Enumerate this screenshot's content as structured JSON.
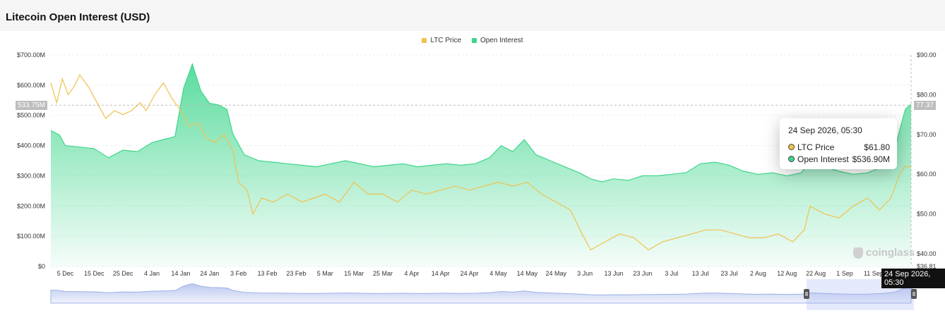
{
  "page_title": "Litecoin Open Interest (USD)",
  "legend": {
    "price_label": "LTC Price",
    "oi_label": "Open Interest"
  },
  "colors": {
    "price": "#f0c24d",
    "open_interest": "#3dd68c",
    "navigator": "#9eb0e8"
  },
  "crosshair": {
    "left_value": "533.75M",
    "right_value": "77.37",
    "oi_value_millions": 533.75,
    "price_value": 77.37
  },
  "tooltip": {
    "date": "24 Sep 2026, 05:30",
    "price_label": "LTC Price",
    "price_value": "$61.80",
    "oi_label": "Open Interest",
    "oi_value": "$536.90M"
  },
  "x_badge": "24 Sep 2026, 05:30",
  "watermark": "coinglass",
  "chart_data": {
    "type": "area",
    "left_axis": {
      "label": "",
      "ticks": [
        "$0",
        "$100.00M",
        "$200.00M",
        "$300.00M",
        "$400.00M",
        "$500.00M",
        "$600.00M",
        "$700.00M"
      ],
      "range": [
        0,
        700
      ]
    },
    "right_axis": {
      "label": "",
      "ticks": [
        "$36.81",
        "$40.00",
        "$50.00",
        "$60.00",
        "$70.00",
        "$80.00",
        "$90.00"
      ],
      "range": [
        36.81,
        90
      ]
    },
    "x_ticks": [
      "5 Dec",
      "15 Dec",
      "25 Dec",
      "4 Jan",
      "14 Jan",
      "24 Jan",
      "3 Feb",
      "13 Feb",
      "23 Feb",
      "5 Mar",
      "15 Mar",
      "25 Mar",
      "4 Apr",
      "14 Apr",
      "24 Apr",
      "4 May",
      "14 May",
      "24 May",
      "3 Jun",
      "13 Jun",
      "23 Jun",
      "3 Jul",
      "13 Jul",
      "23 Jul",
      "2 Aug",
      "12 Aug",
      "22 Aug",
      "1 Sep",
      "11 Sep"
    ],
    "x_range": [
      "2025-11-30",
      "2026-09-24"
    ],
    "series": [
      {
        "name": "Open Interest",
        "unit": "USD millions",
        "axis": "left",
        "points": [
          [
            "2025-11-30",
            450
          ],
          [
            "2025-12-03",
            435
          ],
          [
            "2025-12-05",
            400
          ],
          [
            "2025-12-10",
            395
          ],
          [
            "2025-12-15",
            390
          ],
          [
            "2025-12-20",
            360
          ],
          [
            "2025-12-25",
            385
          ],
          [
            "2025-12-30",
            380
          ],
          [
            "2026-01-04",
            410
          ],
          [
            "2026-01-08",
            420
          ],
          [
            "2026-01-12",
            430
          ],
          [
            "2026-01-15",
            590
          ],
          [
            "2026-01-18",
            670
          ],
          [
            "2026-01-21",
            580
          ],
          [
            "2026-01-24",
            540
          ],
          [
            "2026-01-27",
            535
          ],
          [
            "2026-01-30",
            520
          ],
          [
            "2026-02-01",
            440
          ],
          [
            "2026-02-05",
            370
          ],
          [
            "2026-02-10",
            350
          ],
          [
            "2026-02-15",
            345
          ],
          [
            "2026-02-20",
            340
          ],
          [
            "2026-02-25",
            335
          ],
          [
            "2026-03-02",
            330
          ],
          [
            "2026-03-07",
            340
          ],
          [
            "2026-03-12",
            350
          ],
          [
            "2026-03-17",
            340
          ],
          [
            "2026-03-22",
            330
          ],
          [
            "2026-03-27",
            335
          ],
          [
            "2026-04-01",
            340
          ],
          [
            "2026-04-06",
            330
          ],
          [
            "2026-04-11",
            335
          ],
          [
            "2026-04-16",
            340
          ],
          [
            "2026-04-21",
            335
          ],
          [
            "2026-04-26",
            340
          ],
          [
            "2026-05-01",
            360
          ],
          [
            "2026-05-05",
            400
          ],
          [
            "2026-05-09",
            380
          ],
          [
            "2026-05-13",
            420
          ],
          [
            "2026-05-17",
            370
          ],
          [
            "2026-05-22",
            350
          ],
          [
            "2026-05-27",
            330
          ],
          [
            "2026-06-01",
            310
          ],
          [
            "2026-06-05",
            290
          ],
          [
            "2026-06-09",
            280
          ],
          [
            "2026-06-13",
            290
          ],
          [
            "2026-06-18",
            285
          ],
          [
            "2026-06-23",
            300
          ],
          [
            "2026-06-28",
            300
          ],
          [
            "2026-07-03",
            305
          ],
          [
            "2026-07-08",
            310
          ],
          [
            "2026-07-13",
            340
          ],
          [
            "2026-07-18",
            345
          ],
          [
            "2026-07-23",
            335
          ],
          [
            "2026-07-28",
            315
          ],
          [
            "2026-08-02",
            305
          ],
          [
            "2026-08-07",
            310
          ],
          [
            "2026-08-12",
            300
          ],
          [
            "2026-08-17",
            310
          ],
          [
            "2026-08-20",
            355
          ],
          [
            "2026-08-25",
            330
          ],
          [
            "2026-08-30",
            315
          ],
          [
            "2026-09-04",
            305
          ],
          [
            "2026-09-09",
            310
          ],
          [
            "2026-09-14",
            330
          ],
          [
            "2026-09-18",
            370
          ],
          [
            "2026-09-20",
            450
          ],
          [
            "2026-09-22",
            520
          ],
          [
            "2026-09-24",
            536.9
          ]
        ]
      },
      {
        "name": "LTC Price",
        "unit": "USD",
        "axis": "right",
        "points": [
          [
            "2025-11-30",
            83
          ],
          [
            "2025-12-02",
            78
          ],
          [
            "2025-12-04",
            84
          ],
          [
            "2025-12-06",
            80
          ],
          [
            "2025-12-08",
            82
          ],
          [
            "2025-12-10",
            85
          ],
          [
            "2025-12-13",
            82
          ],
          [
            "2025-12-16",
            78
          ],
          [
            "2025-12-19",
            74
          ],
          [
            "2025-12-22",
            76
          ],
          [
            "2025-12-25",
            75
          ],
          [
            "2025-12-28",
            76
          ],
          [
            "2025-12-31",
            78
          ],
          [
            "2026-01-02",
            76
          ],
          [
            "2026-01-05",
            80
          ],
          [
            "2026-01-08",
            83
          ],
          [
            "2026-01-11",
            79
          ],
          [
            "2026-01-14",
            76
          ],
          [
            "2026-01-17",
            72
          ],
          [
            "2026-01-20",
            73
          ],
          [
            "2026-01-23",
            69
          ],
          [
            "2026-01-26",
            68
          ],
          [
            "2026-01-29",
            70
          ],
          [
            "2026-02-01",
            66
          ],
          [
            "2026-02-03",
            58
          ],
          [
            "2026-02-06",
            56
          ],
          [
            "2026-02-08",
            50
          ],
          [
            "2026-02-11",
            54
          ],
          [
            "2026-02-15",
            53
          ],
          [
            "2026-02-20",
            55
          ],
          [
            "2026-02-25",
            53
          ],
          [
            "2026-03-01",
            54
          ],
          [
            "2026-03-05",
            55
          ],
          [
            "2026-03-10",
            53
          ],
          [
            "2026-03-15",
            58
          ],
          [
            "2026-03-20",
            55
          ],
          [
            "2026-03-25",
            55
          ],
          [
            "2026-03-30",
            53
          ],
          [
            "2026-04-04",
            56
          ],
          [
            "2026-04-09",
            55
          ],
          [
            "2026-04-14",
            56
          ],
          [
            "2026-04-19",
            57
          ],
          [
            "2026-04-24",
            56
          ],
          [
            "2026-04-29",
            57
          ],
          [
            "2026-05-04",
            58
          ],
          [
            "2026-05-09",
            57
          ],
          [
            "2026-05-14",
            58
          ],
          [
            "2026-05-19",
            55
          ],
          [
            "2026-05-24",
            53
          ],
          [
            "2026-05-29",
            51
          ],
          [
            "2026-06-02",
            45
          ],
          [
            "2026-06-05",
            41
          ],
          [
            "2026-06-10",
            43
          ],
          [
            "2026-06-15",
            45
          ],
          [
            "2026-06-20",
            44
          ],
          [
            "2026-06-25",
            41
          ],
          [
            "2026-06-30",
            43
          ],
          [
            "2026-07-05",
            44
          ],
          [
            "2026-07-10",
            45
          ],
          [
            "2026-07-15",
            46
          ],
          [
            "2026-07-20",
            46
          ],
          [
            "2026-07-25",
            45
          ],
          [
            "2026-07-30",
            44
          ],
          [
            "2026-08-04",
            44
          ],
          [
            "2026-08-09",
            45
          ],
          [
            "2026-08-14",
            43
          ],
          [
            "2026-08-18",
            46
          ],
          [
            "2026-08-20",
            52
          ],
          [
            "2026-08-25",
            50
          ],
          [
            "2026-08-30",
            49
          ],
          [
            "2026-09-04",
            52
          ],
          [
            "2026-09-09",
            54
          ],
          [
            "2026-09-13",
            51
          ],
          [
            "2026-09-17",
            54
          ],
          [
            "2026-09-20",
            60
          ],
          [
            "2026-09-22",
            62
          ],
          [
            "2026-09-24",
            61.8
          ]
        ]
      }
    ],
    "grid": true,
    "legend_position": "top-center"
  }
}
